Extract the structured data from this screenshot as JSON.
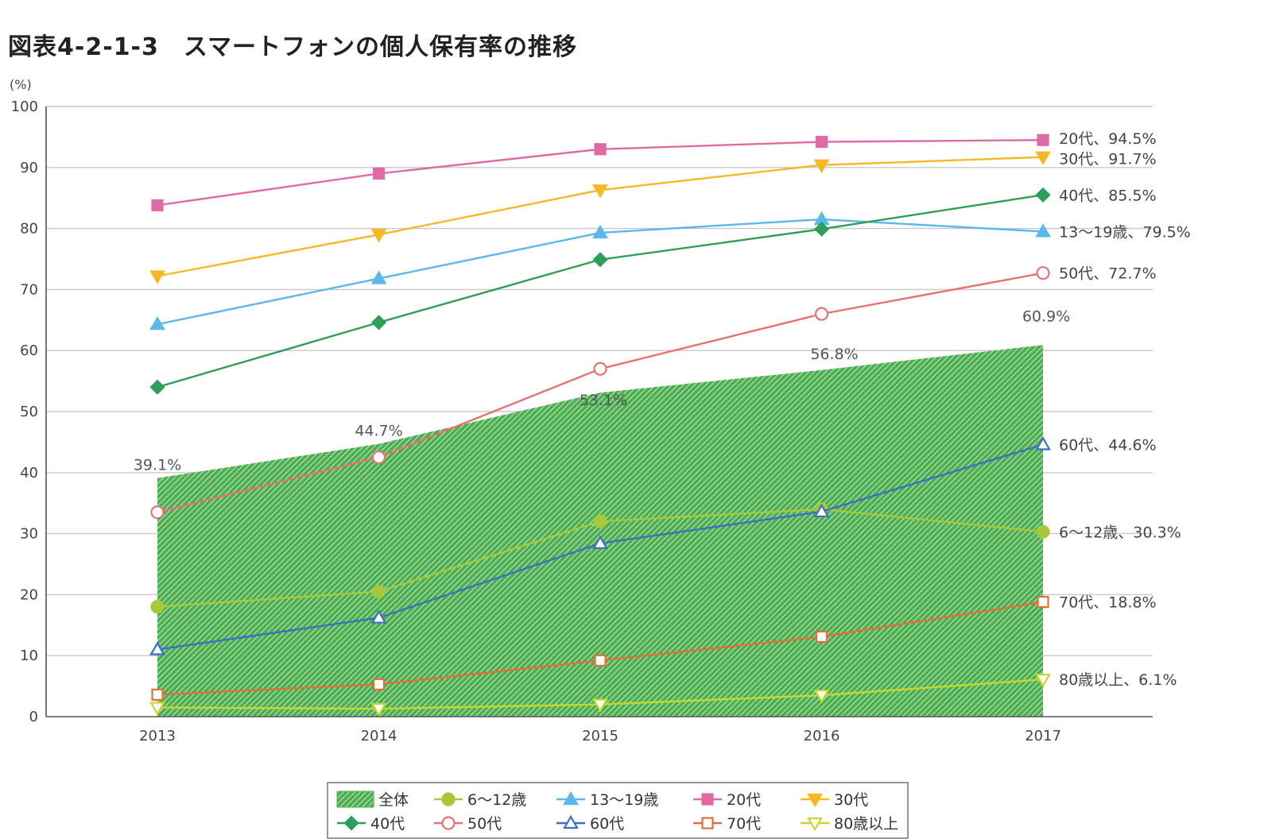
{
  "title": "図表4-2-1-3　スマートフォンの個人保有率の推移",
  "chart_data": {
    "type": "line",
    "title": "図表4-2-1-3　スマートフォンの個人保有率の推移",
    "ylabel": "(%)",
    "xlabel": "",
    "ylim": [
      0,
      100
    ],
    "yticks": [
      0,
      10,
      20,
      30,
      40,
      50,
      60,
      70,
      80,
      90,
      100
    ],
    "categories": [
      "2013",
      "2014",
      "2015",
      "2016",
      "2017"
    ],
    "grid": true,
    "legend_position": "bottom-center",
    "area_series": {
      "name": "全体",
      "values": [
        39.1,
        44.7,
        53.1,
        56.8,
        60.9
      ],
      "labels": [
        "39.1%",
        "44.7%",
        "53.1%",
        "56.8%",
        "60.9%"
      ],
      "color": "#4caf50"
    },
    "series": [
      {
        "name": "6～12歳",
        "values": [
          18.0,
          20.5,
          32.0,
          34.0,
          30.3
        ],
        "color": "#a7c83c",
        "marker": "circle-filled",
        "end_label": "6～12歳、30.3%"
      },
      {
        "name": "13～19歳",
        "values": [
          64.3,
          71.8,
          79.3,
          81.5,
          79.5
        ],
        "color": "#5bb8ea",
        "marker": "triangle-filled",
        "end_label": "13～19歳、79.5%"
      },
      {
        "name": "20代",
        "values": [
          83.8,
          89.0,
          93.0,
          94.2,
          94.5
        ],
        "color": "#e06aa6",
        "marker": "square-filled",
        "end_label": "20代、94.5%"
      },
      {
        "name": "30代",
        "values": [
          72.2,
          79.0,
          86.3,
          90.4,
          91.7
        ],
        "color": "#f5b925",
        "marker": "triangle-down-filled",
        "end_label": "30代、91.7%"
      },
      {
        "name": "40代",
        "values": [
          54.0,
          64.6,
          74.9,
          79.9,
          85.5
        ],
        "color": "#2f9e5a",
        "marker": "diamond-filled",
        "end_label": "40代、85.5%"
      },
      {
        "name": "50代",
        "values": [
          33.5,
          42.5,
          57.0,
          66.0,
          72.7
        ],
        "color": "#e57373",
        "marker": "circle-open",
        "end_label": "50代、72.7%"
      },
      {
        "name": "60代",
        "values": [
          11.0,
          16.2,
          28.4,
          33.6,
          44.6
        ],
        "color": "#3f6fbf",
        "marker": "triangle-open",
        "end_label": "60代、44.6%"
      },
      {
        "name": "70代",
        "values": [
          3.6,
          5.3,
          9.2,
          13.1,
          18.8
        ],
        "color": "#e0703a",
        "marker": "square-open",
        "end_label": "70代、18.8%"
      },
      {
        "name": "80歳以上",
        "values": [
          1.5,
          1.3,
          2.0,
          3.5,
          6.1
        ],
        "color": "#c8d82a",
        "marker": "triangle-down-open",
        "end_label": "80歳以上、6.1%"
      }
    ]
  }
}
